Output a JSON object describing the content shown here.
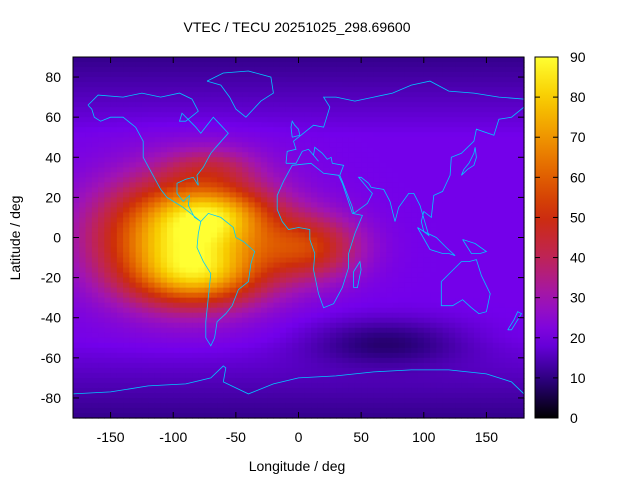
{
  "chart_data": {
    "type": "heatmap",
    "title": "VTEC / TECU 20251025_298.69600",
    "xlabel": "Longitude / deg",
    "ylabel": "Latitude / deg",
    "xlim": [
      -180,
      180
    ],
    "ylim": [
      -90,
      90
    ],
    "xticks": [
      -150,
      -100,
      -50,
      0,
      50,
      100,
      150
    ],
    "yticks": [
      -80,
      -60,
      -40,
      -20,
      0,
      20,
      40,
      60,
      80
    ],
    "colorbar": {
      "range": [
        0,
        90
      ],
      "ticks": [
        0,
        10,
        20,
        30,
        40,
        50,
        60,
        70,
        80,
        90
      ],
      "colormap": "black-purple-red-orange-yellow"
    },
    "grid_resolution": {
      "lon_step": 5,
      "lat_step": 2.5
    },
    "features": [
      {
        "name": "equatorial-peak",
        "lon": -90,
        "lat": 0,
        "vtec": 82
      },
      {
        "name": "south-crest",
        "lon": -80,
        "lat": -20,
        "vtec": 72
      },
      {
        "name": "north-crest",
        "lon": -65,
        "lat": 12,
        "vtec": 70
      },
      {
        "name": "atlantic-tongue",
        "lon": 10,
        "lat": -5,
        "vtec": 48
      },
      {
        "name": "polar-background",
        "lon": 60,
        "lat": 70,
        "vtec": 12
      },
      {
        "name": "southern-ocean-low",
        "lon": 70,
        "lat": -52,
        "vtec": 9
      },
      {
        "name": "night-side-background",
        "lon": 120,
        "lat": 0,
        "vtec": 20
      }
    ],
    "overlay": "continent outlines (cyan)"
  },
  "colors": {
    "coastline": "#00c8ff",
    "frame": "#000000",
    "background": "#ffffff"
  }
}
